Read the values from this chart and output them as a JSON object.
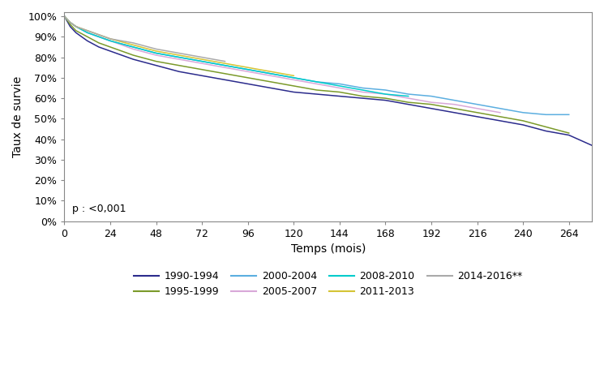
{
  "xlabel": "Temps (mois)",
  "ylabel": "Taux de survie",
  "pvalue": "p : <0,001",
  "xlim": [
    0,
    276
  ],
  "ylim": [
    0.0,
    1.02
  ],
  "xticks": [
    0,
    24,
    48,
    72,
    96,
    120,
    144,
    168,
    192,
    216,
    240,
    264
  ],
  "yticks": [
    0.0,
    0.1,
    0.2,
    0.3,
    0.4,
    0.5,
    0.6,
    0.7,
    0.8,
    0.9,
    1.0
  ],
  "series": [
    {
      "label": "1990-1994",
      "color": "#2B2B8C",
      "linewidth": 1.1,
      "points": [
        [
          0,
          1.0
        ],
        [
          3,
          0.95
        ],
        [
          6,
          0.92
        ],
        [
          12,
          0.88
        ],
        [
          18,
          0.85
        ],
        [
          24,
          0.83
        ],
        [
          36,
          0.79
        ],
        [
          48,
          0.76
        ],
        [
          60,
          0.73
        ],
        [
          72,
          0.71
        ],
        [
          84,
          0.69
        ],
        [
          96,
          0.67
        ],
        [
          108,
          0.65
        ],
        [
          120,
          0.63
        ],
        [
          132,
          0.62
        ],
        [
          144,
          0.61
        ],
        [
          156,
          0.6
        ],
        [
          168,
          0.59
        ],
        [
          180,
          0.57
        ],
        [
          192,
          0.55
        ],
        [
          204,
          0.53
        ],
        [
          216,
          0.51
        ],
        [
          228,
          0.49
        ],
        [
          240,
          0.47
        ],
        [
          252,
          0.44
        ],
        [
          264,
          0.42
        ],
        [
          276,
          0.37
        ]
      ]
    },
    {
      "label": "1995-1999",
      "color": "#7B9A2A",
      "linewidth": 1.1,
      "points": [
        [
          0,
          1.0
        ],
        [
          3,
          0.96
        ],
        [
          6,
          0.93
        ],
        [
          12,
          0.9
        ],
        [
          18,
          0.87
        ],
        [
          24,
          0.85
        ],
        [
          36,
          0.81
        ],
        [
          48,
          0.78
        ],
        [
          60,
          0.76
        ],
        [
          72,
          0.74
        ],
        [
          84,
          0.72
        ],
        [
          96,
          0.7
        ],
        [
          108,
          0.68
        ],
        [
          120,
          0.66
        ],
        [
          132,
          0.64
        ],
        [
          144,
          0.63
        ],
        [
          156,
          0.61
        ],
        [
          168,
          0.6
        ],
        [
          180,
          0.58
        ],
        [
          192,
          0.57
        ],
        [
          204,
          0.55
        ],
        [
          216,
          0.53
        ],
        [
          228,
          0.51
        ],
        [
          240,
          0.49
        ],
        [
          252,
          0.46
        ],
        [
          264,
          0.43
        ]
      ]
    },
    {
      "label": "2000-2004",
      "color": "#5BAEE0",
      "linewidth": 1.1,
      "points": [
        [
          0,
          1.0
        ],
        [
          3,
          0.97
        ],
        [
          6,
          0.95
        ],
        [
          12,
          0.92
        ],
        [
          18,
          0.9
        ],
        [
          24,
          0.88
        ],
        [
          36,
          0.85
        ],
        [
          48,
          0.82
        ],
        [
          60,
          0.8
        ],
        [
          72,
          0.78
        ],
        [
          84,
          0.76
        ],
        [
          96,
          0.74
        ],
        [
          108,
          0.72
        ],
        [
          120,
          0.7
        ],
        [
          132,
          0.68
        ],
        [
          144,
          0.67
        ],
        [
          156,
          0.65
        ],
        [
          168,
          0.64
        ],
        [
          180,
          0.62
        ],
        [
          192,
          0.61
        ],
        [
          204,
          0.59
        ],
        [
          216,
          0.57
        ],
        [
          228,
          0.55
        ],
        [
          240,
          0.53
        ],
        [
          252,
          0.52
        ],
        [
          264,
          0.52
        ]
      ]
    },
    {
      "label": "2005-2007",
      "color": "#D8A8D8",
      "linewidth": 1.1,
      "points": [
        [
          0,
          1.0
        ],
        [
          3,
          0.97
        ],
        [
          6,
          0.95
        ],
        [
          12,
          0.92
        ],
        [
          18,
          0.9
        ],
        [
          24,
          0.88
        ],
        [
          36,
          0.84
        ],
        [
          48,
          0.81
        ],
        [
          60,
          0.79
        ],
        [
          72,
          0.77
        ],
        [
          84,
          0.75
        ],
        [
          96,
          0.73
        ],
        [
          108,
          0.71
        ],
        [
          120,
          0.69
        ],
        [
          132,
          0.67
        ],
        [
          144,
          0.65
        ],
        [
          156,
          0.63
        ],
        [
          168,
          0.62
        ],
        [
          180,
          0.6
        ],
        [
          192,
          0.58
        ],
        [
          204,
          0.57
        ],
        [
          216,
          0.55
        ],
        [
          228,
          0.53
        ]
      ]
    },
    {
      "label": "2008-2010",
      "color": "#00CCCC",
      "linewidth": 1.1,
      "points": [
        [
          0,
          1.0
        ],
        [
          3,
          0.97
        ],
        [
          6,
          0.95
        ],
        [
          12,
          0.92
        ],
        [
          18,
          0.9
        ],
        [
          24,
          0.88
        ],
        [
          36,
          0.85
        ],
        [
          48,
          0.82
        ],
        [
          60,
          0.8
        ],
        [
          72,
          0.78
        ],
        [
          84,
          0.76
        ],
        [
          96,
          0.74
        ],
        [
          108,
          0.72
        ],
        [
          120,
          0.7
        ],
        [
          132,
          0.68
        ],
        [
          144,
          0.66
        ],
        [
          156,
          0.64
        ],
        [
          168,
          0.62
        ],
        [
          180,
          0.61
        ]
      ]
    },
    {
      "label": "2011-2013",
      "color": "#D4C435",
      "linewidth": 1.1,
      "points": [
        [
          0,
          1.0
        ],
        [
          3,
          0.97
        ],
        [
          6,
          0.95
        ],
        [
          12,
          0.93
        ],
        [
          18,
          0.91
        ],
        [
          24,
          0.89
        ],
        [
          36,
          0.86
        ],
        [
          48,
          0.83
        ],
        [
          60,
          0.81
        ],
        [
          72,
          0.79
        ],
        [
          84,
          0.77
        ],
        [
          96,
          0.75
        ],
        [
          108,
          0.73
        ],
        [
          120,
          0.71
        ]
      ]
    },
    {
      "label": "2014-2016**",
      "color": "#AAAAAA",
      "linewidth": 1.1,
      "points": [
        [
          0,
          1.0
        ],
        [
          3,
          0.97
        ],
        [
          6,
          0.95
        ],
        [
          12,
          0.93
        ],
        [
          18,
          0.91
        ],
        [
          24,
          0.89
        ],
        [
          36,
          0.87
        ],
        [
          48,
          0.84
        ],
        [
          60,
          0.82
        ],
        [
          72,
          0.8
        ],
        [
          84,
          0.78
        ]
      ]
    }
  ],
  "legend_rows": [
    [
      "1990-1994",
      "1995-1999",
      "2000-2004",
      "2005-2007"
    ],
    [
      "2008-2010",
      "2011-2013",
      "2014-2016**"
    ]
  ],
  "background_color": "#ffffff",
  "tick_fontsize": 9,
  "label_fontsize": 10,
  "legend_fontsize": 9
}
